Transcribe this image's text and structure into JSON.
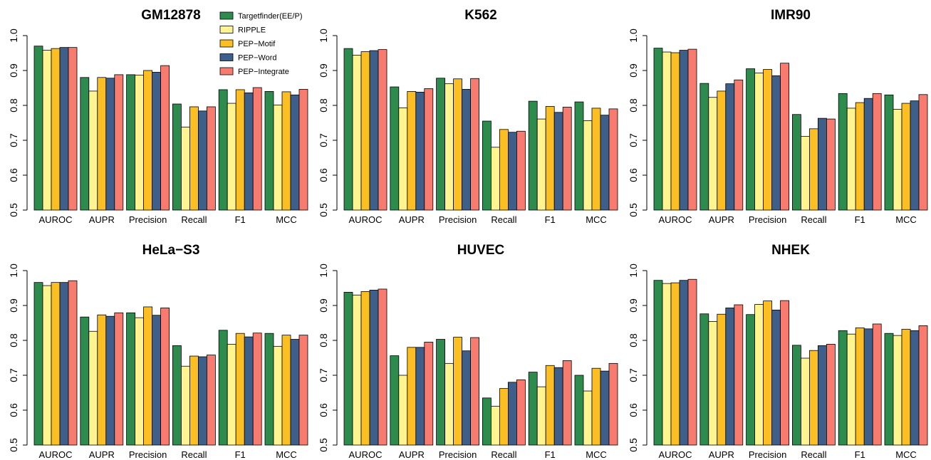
{
  "legend": {
    "placement": "top-left of first panel",
    "entries": [
      "Targetfinder(EE/P)",
      "RIPPLE",
      "PEP−Motif",
      "PEP−Word",
      "PEP−Integrate"
    ]
  },
  "colors": [
    "#2e8b4e",
    "#fff48f",
    "#fbbf24",
    "#3e5f8a",
    "#f87b6f"
  ],
  "chart_data": [
    {
      "type": "bar",
      "title": "GM12878",
      "categories": [
        "AUROC",
        "AUPR",
        "Precision",
        "Recall",
        "F1",
        "MCC"
      ],
      "ylim": [
        0.5,
        1.0
      ],
      "yticks": [
        "0.5",
        "0.6",
        "0.7",
        "0.8",
        "0.9",
        "1.0"
      ],
      "grid": false,
      "series": [
        {
          "name": "Targetfinder(EE/P)",
          "values": [
            0.97,
            0.88,
            0.888,
            0.804,
            0.845,
            0.84
          ]
        },
        {
          "name": "RIPPLE",
          "values": [
            0.958,
            0.841,
            0.887,
            0.738,
            0.806,
            0.801
          ]
        },
        {
          "name": "PEP−Motif",
          "values": [
            0.963,
            0.88,
            0.9,
            0.796,
            0.845,
            0.839
          ]
        },
        {
          "name": "PEP−Word",
          "values": [
            0.966,
            0.878,
            0.895,
            0.784,
            0.836,
            0.83
          ]
        },
        {
          "name": "PEP−Integrate",
          "values": [
            0.966,
            0.888,
            0.914,
            0.796,
            0.851,
            0.846
          ]
        }
      ]
    },
    {
      "type": "bar",
      "title": "K562",
      "categories": [
        "AUROC",
        "AUPR",
        "Precision",
        "Recall",
        "F1",
        "MCC"
      ],
      "ylim": [
        0.5,
        1.0
      ],
      "yticks": [
        "0.5",
        "0.6",
        "0.7",
        "0.8",
        "0.9",
        "1.0"
      ],
      "grid": false,
      "series": [
        {
          "name": "Targetfinder(EE/P)",
          "values": [
            0.963,
            0.853,
            0.878,
            0.755,
            0.812,
            0.81
          ]
        },
        {
          "name": "RIPPLE",
          "values": [
            0.944,
            0.793,
            0.862,
            0.68,
            0.761,
            0.756
          ]
        },
        {
          "name": "PEP−Motif",
          "values": [
            0.954,
            0.84,
            0.876,
            0.731,
            0.797,
            0.792
          ]
        },
        {
          "name": "PEP−Word",
          "values": [
            0.957,
            0.838,
            0.846,
            0.723,
            0.78,
            0.772
          ]
        },
        {
          "name": "PEP−Integrate",
          "values": [
            0.96,
            0.848,
            0.877,
            0.726,
            0.795,
            0.79
          ]
        }
      ]
    },
    {
      "type": "bar",
      "title": "IMR90",
      "categories": [
        "AUROC",
        "AUPR",
        "Precision",
        "Recall",
        "F1",
        "MCC"
      ],
      "ylim": [
        0.5,
        1.0
      ],
      "yticks": [
        "0.5",
        "0.6",
        "0.7",
        "0.8",
        "0.9",
        "1.0"
      ],
      "grid": false,
      "series": [
        {
          "name": "Targetfinder(EE/P)",
          "values": [
            0.964,
            0.863,
            0.905,
            0.774,
            0.834,
            0.83
          ]
        },
        {
          "name": "RIPPLE",
          "values": [
            0.953,
            0.823,
            0.893,
            0.711,
            0.792,
            0.789
          ]
        },
        {
          "name": "PEP−Motif",
          "values": [
            0.951,
            0.841,
            0.903,
            0.733,
            0.808,
            0.806
          ]
        },
        {
          "name": "PEP−Word",
          "values": [
            0.958,
            0.862,
            0.885,
            0.763,
            0.82,
            0.813
          ]
        },
        {
          "name": "PEP−Integrate",
          "values": [
            0.961,
            0.873,
            0.921,
            0.761,
            0.834,
            0.831
          ]
        }
      ]
    },
    {
      "type": "bar",
      "title": "HeLa−S3",
      "categories": [
        "AUROC",
        "AUPR",
        "Precision",
        "Recall",
        "F1",
        "MCC"
      ],
      "ylim": [
        0.5,
        1.0
      ],
      "yticks": [
        "0.5",
        "0.6",
        "0.7",
        "0.8",
        "0.9",
        "1.0"
      ],
      "grid": false,
      "series": [
        {
          "name": "Targetfinder(EE/P)",
          "values": [
            0.966,
            0.867,
            0.879,
            0.785,
            0.829,
            0.82
          ]
        },
        {
          "name": "RIPPLE",
          "values": [
            0.957,
            0.826,
            0.865,
            0.726,
            0.789,
            0.783
          ]
        },
        {
          "name": "PEP−Motif",
          "values": [
            0.966,
            0.873,
            0.896,
            0.755,
            0.82,
            0.815
          ]
        },
        {
          "name": "PEP−Word",
          "values": [
            0.966,
            0.869,
            0.872,
            0.753,
            0.81,
            0.803
          ]
        },
        {
          "name": "PEP−Integrate",
          "values": [
            0.971,
            0.879,
            0.893,
            0.758,
            0.821,
            0.815
          ]
        }
      ]
    },
    {
      "type": "bar",
      "title": "HUVEC",
      "categories": [
        "AUROC",
        "AUPR",
        "Precision",
        "Recall",
        "F1",
        "MCC"
      ],
      "ylim": [
        0.5,
        1.0
      ],
      "yticks": [
        "0.5",
        "0.6",
        "0.7",
        "0.8",
        "0.9",
        "1.0"
      ],
      "grid": false,
      "series": [
        {
          "name": "Targetfinder(EE/P)",
          "values": [
            0.938,
            0.756,
            0.803,
            0.635,
            0.709,
            0.7
          ]
        },
        {
          "name": "RIPPLE",
          "values": [
            0.93,
            0.7,
            0.734,
            0.611,
            0.667,
            0.655
          ]
        },
        {
          "name": "PEP−Motif",
          "values": [
            0.94,
            0.78,
            0.809,
            0.662,
            0.728,
            0.72
          ]
        },
        {
          "name": "PEP−Word",
          "values": [
            0.944,
            0.78,
            0.77,
            0.68,
            0.722,
            0.712
          ]
        },
        {
          "name": "PEP−Integrate",
          "values": [
            0.947,
            0.795,
            0.808,
            0.687,
            0.742,
            0.734
          ]
        }
      ]
    },
    {
      "type": "bar",
      "title": "NHEK",
      "categories": [
        "AUROC",
        "AUPR",
        "Precision",
        "Recall",
        "F1",
        "MCC"
      ],
      "ylim": [
        0.5,
        1.0
      ],
      "yticks": [
        "0.5",
        "0.6",
        "0.7",
        "0.8",
        "0.9",
        "1.0"
      ],
      "grid": false,
      "series": [
        {
          "name": "Targetfinder(EE/P)",
          "values": [
            0.972,
            0.876,
            0.874,
            0.786,
            0.828,
            0.82
          ]
        },
        {
          "name": "RIPPLE",
          "values": [
            0.963,
            0.854,
            0.903,
            0.749,
            0.818,
            0.814
          ]
        },
        {
          "name": "PEP−Motif",
          "values": [
            0.965,
            0.875,
            0.913,
            0.771,
            0.836,
            0.832
          ]
        },
        {
          "name": "PEP−Word",
          "values": [
            0.972,
            0.893,
            0.887,
            0.785,
            0.833,
            0.828
          ]
        },
        {
          "name": "PEP−Integrate",
          "values": [
            0.975,
            0.902,
            0.914,
            0.789,
            0.847,
            0.842
          ]
        }
      ]
    }
  ]
}
